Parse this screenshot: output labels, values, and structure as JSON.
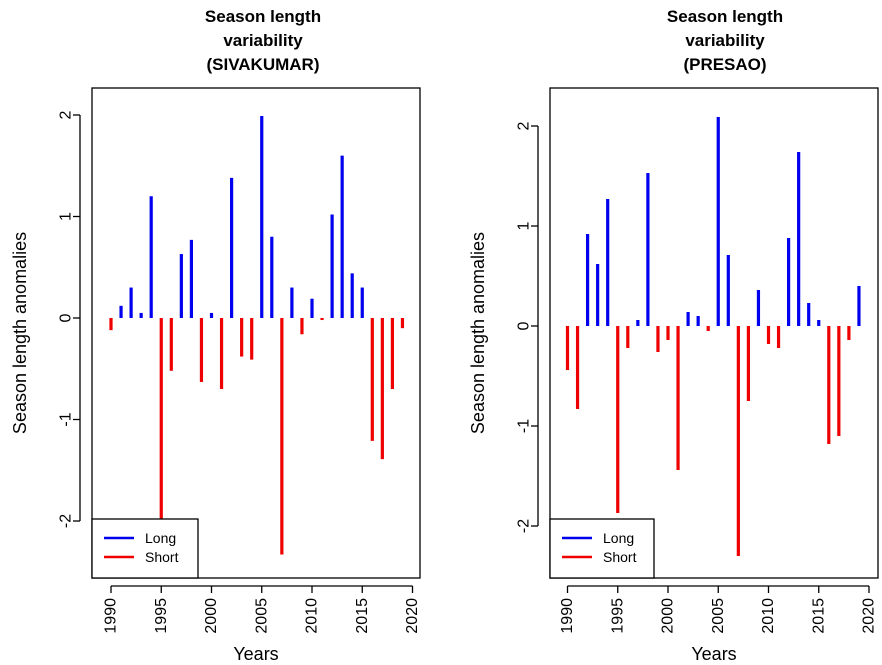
{
  "chart_data": [
    {
      "type": "bar",
      "title_lines": [
        "Season length",
        "variability",
        "(SIVAKUMAR)"
      ],
      "xlabel": "Years",
      "ylabel": "Season length anomalies",
      "xlim": [
        1989,
        2020
      ],
      "ylim": [
        -2.5,
        2.2
      ],
      "xticks": [
        1990,
        1995,
        2000,
        2005,
        2010,
        2015,
        2020
      ],
      "yticks": [
        -2,
        -1,
        0,
        1,
        2
      ],
      "legend": {
        "placement": "bottom-left",
        "entries": [
          "Long",
          "Short"
        ]
      },
      "colors": {
        "Long": "#0000ee",
        "Short": "#ee0000"
      },
      "series": [
        {
          "name": "Long",
          "x": [
            1990,
            1991,
            1992,
            1993,
            1994,
            1995,
            1996,
            1997,
            1998,
            1999,
            2000,
            2001,
            2002,
            2003,
            2004,
            2005,
            2006,
            2007,
            2008,
            2009,
            2010,
            2011,
            2012,
            2013,
            2014,
            2015,
            2016,
            2017,
            2018,
            2019
          ],
          "values": [
            0,
            0.12,
            0.3,
            0.05,
            1.2,
            0,
            0,
            0.63,
            0.77,
            0,
            0.05,
            0,
            1.38,
            0,
            0,
            1.99,
            0.8,
            0,
            0.3,
            0,
            0.19,
            0,
            1.02,
            1.6,
            0.44,
            0.3,
            0,
            0,
            0,
            0
          ]
        },
        {
          "name": "Short",
          "x": [
            1990,
            1991,
            1992,
            1993,
            1994,
            1995,
            1996,
            1997,
            1998,
            1999,
            2000,
            2001,
            2002,
            2003,
            2004,
            2005,
            2006,
            2007,
            2008,
            2009,
            2010,
            2011,
            2012,
            2013,
            2014,
            2015,
            2016,
            2017,
            2018,
            2019
          ],
          "values": [
            -0.12,
            0,
            0,
            0,
            0,
            -2.0,
            -0.52,
            0,
            0,
            -0.63,
            0,
            -0.7,
            0,
            -0.38,
            -0.41,
            0,
            0,
            -2.33,
            0,
            -0.16,
            0,
            -0.02,
            0,
            0,
            0,
            0,
            -1.21,
            -1.39,
            -0.7,
            -0.1
          ]
        }
      ]
    },
    {
      "type": "bar",
      "title_lines": [
        "Season length",
        "variability",
        "(PRESAO)"
      ],
      "xlabel": "Years",
      "ylabel": "Season length anomalies",
      "xlim": [
        1989,
        2020
      ],
      "ylim": [
        -2.5,
        2.2
      ],
      "xticks": [
        1990,
        1995,
        2000,
        2005,
        2010,
        2015,
        2020
      ],
      "yticks": [
        -2,
        -1,
        0,
        1,
        2
      ],
      "legend": {
        "placement": "bottom-left",
        "entries": [
          "Long",
          "Short"
        ]
      },
      "colors": {
        "Long": "#0000ee",
        "Short": "#ee0000"
      },
      "series": [
        {
          "name": "Long",
          "x": [
            1990,
            1991,
            1992,
            1993,
            1994,
            1995,
            1996,
            1997,
            1998,
            1999,
            2000,
            2001,
            2002,
            2003,
            2004,
            2005,
            2006,
            2007,
            2008,
            2009,
            2010,
            2011,
            2012,
            2013,
            2014,
            2015,
            2016,
            2017,
            2018,
            2019
          ],
          "values": [
            0,
            0,
            0.92,
            0.62,
            1.27,
            0,
            0,
            0.06,
            1.53,
            0,
            0,
            0,
            0.14,
            0.1,
            0,
            2.09,
            0.71,
            0,
            0,
            0.36,
            0,
            0,
            0.88,
            1.74,
            0.23,
            0.06,
            0,
            0,
            0,
            0.4
          ]
        },
        {
          "name": "Short",
          "x": [
            1990,
            1991,
            1992,
            1993,
            1994,
            1995,
            1996,
            1997,
            1998,
            1999,
            2000,
            2001,
            2002,
            2003,
            2004,
            2005,
            2006,
            2007,
            2008,
            2009,
            2010,
            2011,
            2012,
            2013,
            2014,
            2015,
            2016,
            2017,
            2018,
            2019
          ],
          "values": [
            -0.44,
            -0.83,
            0,
            0,
            0,
            -1.87,
            -0.22,
            0,
            0,
            -0.26,
            -0.14,
            -1.44,
            0,
            0,
            -0.05,
            0,
            0,
            -2.3,
            -0.75,
            0,
            -0.18,
            -0.22,
            0,
            0,
            0,
            0,
            -1.18,
            -1.1,
            -0.14,
            0
          ]
        }
      ]
    }
  ]
}
